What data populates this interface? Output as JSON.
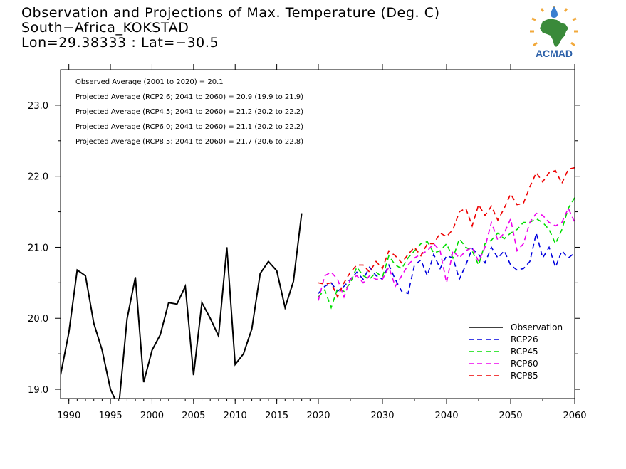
{
  "header": {
    "title_line1": "Observation and Projections of Max. Temperature (Deg. C)",
    "title_line2": "South−Africa_KOKSTAD",
    "title_line3": "Lon=29.38333 : Lat=−30.5"
  },
  "logo": {
    "text": "ACMAD",
    "colors": {
      "africa": "#3a8a3a",
      "sun": "#f2a93b",
      "text": "#2a5fa8",
      "drop": "#3a7fd0"
    }
  },
  "annotations": [
    "Observed Average (2001 to 2020) = 20.1",
    "Projected Average (RCP2.6; 2041 to 2060) = 20.9 (19.9 to 21.9)",
    "Projected Average (RCP4.5; 2041 to 2060) = 21.2 (20.2 to 22.2)",
    "Projected Average (RCP6.0; 2041 to 2060) = 21.1 (20.2 to 22.2)",
    "Projected Average (RCP8.5; 2041 to 2060) = 21.7 (20.6 to 22.8)"
  ],
  "chart_data": {
    "type": "line",
    "title": "Observation and Projections of Max. Temperature (Deg. C)",
    "xlabel": "",
    "ylabel": "",
    "ylim": [
      18.87,
      23.5
    ],
    "yticks": [
      19.0,
      20.0,
      21.0,
      22.0,
      23.0
    ],
    "ytick_labels": [
      "19.0",
      "20.0",
      "21.0",
      "22.0",
      "23.0"
    ],
    "xticks_left": [
      1990,
      1995,
      2000,
      2005,
      2010,
      2015,
      2020
    ],
    "xticks_right": [
      2030,
      2040,
      2050,
      2060
    ],
    "xtick_labels_left": [
      "1990",
      "1995",
      "2000",
      "2005",
      "2010",
      "2015",
      "2020"
    ],
    "xtick_labels_right": [
      "2030",
      "2040",
      "2050",
      "2060"
    ],
    "xlim_left": [
      1989,
      2020
    ],
    "xlim_right": [
      2020,
      2060
    ],
    "legend_position": "bottom-right",
    "grid": false,
    "series": [
      {
        "name": "Observation",
        "color": "#000000",
        "dash": "solid",
        "x": [
          1989,
          1990,
          1991,
          1992,
          1993,
          1994,
          1995,
          1996,
          1997,
          1998,
          1999,
          2000,
          2001,
          2002,
          2003,
          2004,
          2005,
          2006,
          2007,
          2008,
          2009,
          2010,
          2011,
          2012,
          2013,
          2014,
          2015,
          2016,
          2017,
          2018,
          2019
        ],
        "y": [
          19.2,
          19.8,
          20.68,
          20.6,
          19.93,
          19.55,
          19.0,
          18.75,
          19.99,
          20.58,
          19.1,
          19.55,
          19.77,
          20.22,
          20.2,
          20.45,
          19.2,
          20.22,
          20.0,
          19.75,
          21.0,
          19.35,
          19.5,
          19.85,
          20.63,
          20.8,
          20.67,
          20.15,
          20.52,
          21.48,
          null
        ]
      },
      {
        "name": "RCP26",
        "color": "#0000dd",
        "dash": "dashed",
        "x": [
          2020,
          2021,
          2022,
          2023,
          2024,
          2025,
          2026,
          2027,
          2028,
          2029,
          2030,
          2031,
          2032,
          2033,
          2034,
          2035,
          2036,
          2037,
          2038,
          2039,
          2040,
          2041,
          2042,
          2043,
          2044,
          2045,
          2046,
          2047,
          2048,
          2049,
          2050,
          2051,
          2052,
          2053,
          2054,
          2055,
          2056,
          2057,
          2058,
          2059,
          2060
        ],
        "y": [
          20.35,
          20.45,
          20.5,
          20.38,
          20.45,
          20.55,
          20.65,
          20.55,
          20.72,
          20.6,
          20.55,
          20.75,
          20.55,
          20.38,
          20.35,
          20.75,
          20.82,
          20.6,
          20.9,
          20.7,
          20.88,
          20.85,
          20.55,
          20.75,
          20.98,
          20.9,
          20.78,
          21.0,
          20.85,
          20.95,
          20.75,
          20.68,
          20.7,
          20.8,
          21.2,
          20.85,
          21.0,
          20.72,
          20.95,
          20.85,
          20.92
        ]
      },
      {
        "name": "RCP45",
        "color": "#00dd00",
        "dash": "dashed",
        "x": [
          2020,
          2021,
          2022,
          2023,
          2024,
          2025,
          2026,
          2027,
          2028,
          2029,
          2030,
          2031,
          2032,
          2033,
          2034,
          2035,
          2036,
          2037,
          2038,
          2039,
          2040,
          2041,
          2042,
          2043,
          2044,
          2045,
          2046,
          2047,
          2048,
          2049,
          2050,
          2051,
          2052,
          2053,
          2054,
          2055,
          2056,
          2057,
          2058,
          2059,
          2060
        ],
        "y": [
          20.3,
          20.4,
          20.15,
          20.42,
          20.38,
          20.5,
          20.72,
          20.6,
          20.55,
          20.65,
          20.58,
          20.88,
          20.75,
          20.7,
          20.85,
          20.95,
          21.05,
          21.08,
          20.92,
          20.95,
          21.05,
          20.85,
          21.12,
          21.0,
          20.95,
          20.75,
          21.05,
          21.1,
          21.2,
          21.12,
          21.2,
          21.25,
          21.35,
          21.35,
          21.4,
          21.35,
          21.25,
          21.05,
          21.25,
          21.55,
          21.7
        ]
      },
      {
        "name": "RCP60",
        "color": "#ee00ee",
        "dash": "dashed",
        "x": [
          2020,
          2021,
          2022,
          2023,
          2024,
          2025,
          2026,
          2027,
          2028,
          2029,
          2030,
          2031,
          2032,
          2033,
          2034,
          2035,
          2036,
          2037,
          2038,
          2039,
          2040,
          2041,
          2042,
          2043,
          2044,
          2045,
          2046,
          2047,
          2048,
          2049,
          2050,
          2051,
          2052,
          2053,
          2054,
          2055,
          2056,
          2057,
          2058,
          2059,
          2060
        ],
        "y": [
          20.25,
          20.6,
          20.65,
          20.55,
          20.3,
          20.55,
          20.6,
          20.5,
          20.6,
          20.55,
          20.55,
          20.72,
          20.45,
          20.6,
          20.75,
          20.85,
          20.9,
          20.95,
          21.05,
          20.95,
          20.5,
          20.95,
          20.85,
          20.95,
          21.0,
          20.8,
          21.0,
          21.35,
          21.1,
          21.2,
          21.4,
          20.95,
          21.05,
          21.35,
          21.48,
          21.45,
          21.35,
          21.3,
          21.35,
          21.55,
          21.35
        ]
      },
      {
        "name": "RCP85",
        "color": "#ee0000",
        "dash": "dashed",
        "x": [
          2020,
          2021,
          2022,
          2023,
          2024,
          2025,
          2026,
          2027,
          2028,
          2029,
          2030,
          2031,
          2032,
          2033,
          2034,
          2035,
          2036,
          2037,
          2038,
          2039,
          2040,
          2041,
          2042,
          2043,
          2044,
          2045,
          2046,
          2047,
          2048,
          2049,
          2050,
          2051,
          2052,
          2053,
          2054,
          2055,
          2056,
          2057,
          2058,
          2059,
          2060
        ],
        "y": [
          20.5,
          20.48,
          20.5,
          20.3,
          20.5,
          20.65,
          20.75,
          20.75,
          20.65,
          20.8,
          20.7,
          20.95,
          20.88,
          20.78,
          20.9,
          21.0,
          20.88,
          21.05,
          21.05,
          21.2,
          21.15,
          21.25,
          21.5,
          21.55,
          21.3,
          21.6,
          21.45,
          21.58,
          21.38,
          21.55,
          21.75,
          21.6,
          21.62,
          21.85,
          22.05,
          21.92,
          22.05,
          22.08,
          21.9,
          22.1,
          22.12
        ]
      }
    ]
  }
}
